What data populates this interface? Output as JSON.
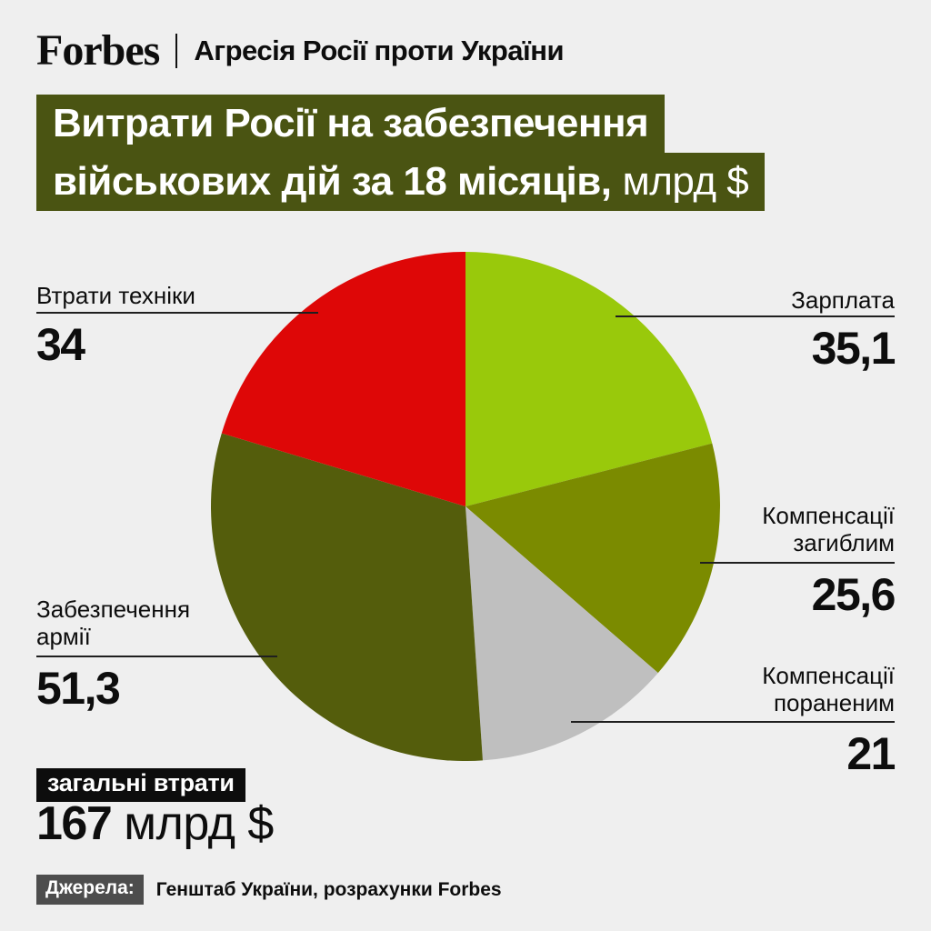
{
  "header": {
    "brand": "Forbes",
    "series_title": "Агресія Росії проти України"
  },
  "title": {
    "line1": "Витрати Росії на забезпечення",
    "line2_bold": "військових дій за 18 місяців,",
    "line2_unit": "млрд $"
  },
  "chart_data": {
    "type": "pie",
    "title": "Витрати Росії на забезпечення військових дій за 18 місяців, млрд $",
    "unit": "млрд $",
    "start_angle_deg": 0,
    "direction": "clockwise",
    "total_value": 167,
    "slices": [
      {
        "label": "Зарплата",
        "label_lines": [
          "Зарплата"
        ],
        "value": 35.1,
        "display_value": "35,1",
        "color": "#99c90b"
      },
      {
        "label": "Компенсації загиблим",
        "label_lines": [
          "Компенсації",
          "загиблим"
        ],
        "value": 25.6,
        "display_value": "25,6",
        "color": "#7b8b00"
      },
      {
        "label": "Компенсації пораненим",
        "label_lines": [
          "Компенсації",
          "пораненим"
        ],
        "value": 21,
        "display_value": "21",
        "color": "#bfbfbf"
      },
      {
        "label": "Забезпечення армії",
        "label_lines": [
          "Забезпечення",
          "армії"
        ],
        "value": 51.3,
        "display_value": "51,3",
        "color": "#545d0c"
      },
      {
        "label": "Втрати техніки",
        "label_lines": [
          "Втрати техніки"
        ],
        "value": 34,
        "display_value": "34",
        "color": "#de0707"
      }
    ]
  },
  "total": {
    "badge": "загальні втрати",
    "number": "167",
    "unit": "млрд $"
  },
  "source": {
    "badge": "Джерела:",
    "text": "Генштаб України, розрахунки Forbes"
  },
  "colors": {
    "background": "#efefef",
    "title_background": "#4a5412",
    "badge_black": "#0d0d0d",
    "badge_gray": "#4d4d4d",
    "text": "#0d0d0d",
    "leader_line": "#1f1f1f"
  }
}
